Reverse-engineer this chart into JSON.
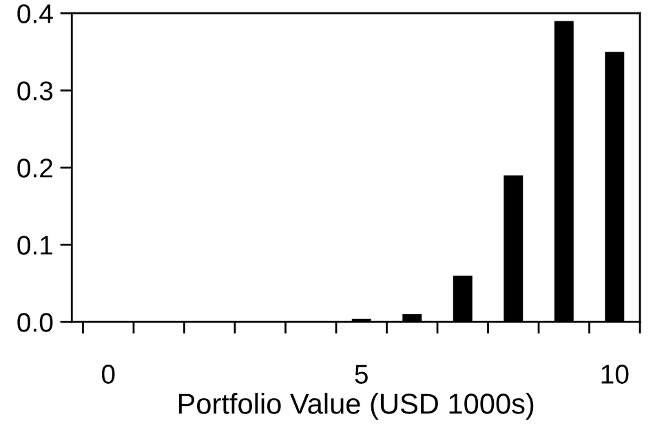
{
  "chart_data": {
    "type": "bar",
    "xlabel": "Portfolio Value (USD 1000s)",
    "x": [
      0,
      1,
      2,
      3,
      4,
      5,
      6,
      7,
      8,
      9,
      10
    ],
    "values": [
      0,
      0,
      0,
      0,
      0,
      0.004,
      0.01,
      0.06,
      0.19,
      0.39,
      0.35
    ],
    "color": "#000000",
    "xlim": [
      -0.72,
      10.5
    ],
    "xticks": [
      {
        "value": -0.5,
        "label": null
      },
      {
        "value": 0,
        "label": "0"
      },
      {
        "value": 0.5,
        "label": null
      },
      {
        "value": 1.5,
        "label": null
      },
      {
        "value": 2.5,
        "label": null
      },
      {
        "value": 3.5,
        "label": null
      },
      {
        "value": 4.5,
        "label": null
      },
      {
        "value": 5,
        "label": "5"
      },
      {
        "value": 5.5,
        "label": null
      },
      {
        "value": 6.5,
        "label": null
      },
      {
        "value": 7.5,
        "label": null
      },
      {
        "value": 8.5,
        "label": null
      },
      {
        "value": 9.5,
        "label": null
      },
      {
        "value": 10,
        "label": "10"
      },
      {
        "value": 10.5,
        "label": null
      }
    ],
    "ylim": [
      0,
      0.4
    ],
    "yticks": [
      {
        "value": 0,
        "label": "0.0"
      },
      0.1,
      0.2,
      0.3,
      0.4
    ],
    "grid": false,
    "legend": false
  }
}
